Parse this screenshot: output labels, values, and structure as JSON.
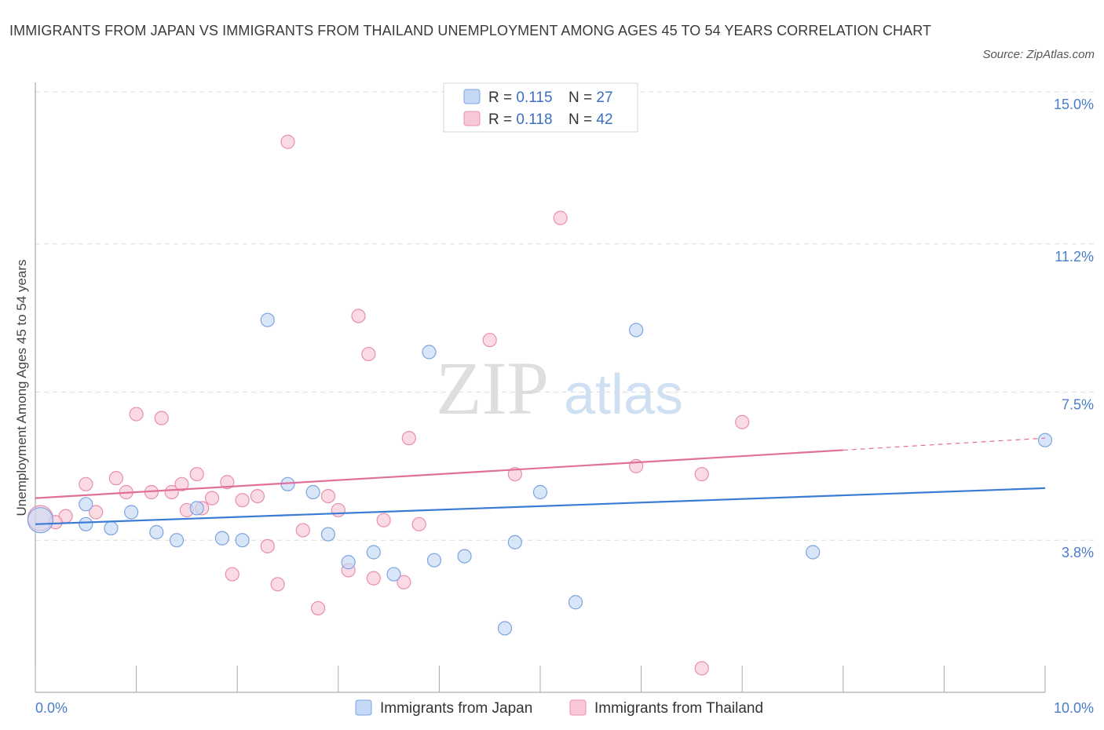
{
  "header": {
    "title": "IMMIGRANTS FROM JAPAN VS IMMIGRANTS FROM THAILAND UNEMPLOYMENT AMONG AGES 45 TO 54 YEARS CORRELATION CHART",
    "source": "Source: ZipAtlas.com"
  },
  "watermark": {
    "zip": "ZIP",
    "atlas": "atlas"
  },
  "colors": {
    "japan_fill": "#c5d8f5",
    "japan_stroke": "#7ba3e0",
    "japan_line": "#3a7bd5",
    "thailand_fill": "#f8c8d6",
    "thailand_stroke": "#e88fab",
    "thailand_line": "#e0709a",
    "tick_label": "#4a7cc9",
    "grid": "#dcdcdc"
  },
  "legend": {
    "rows": [
      {
        "r_label": "R = ",
        "r_value": "0.115",
        "n_label": "N = ",
        "n_value": "27"
      },
      {
        "r_label": "R = ",
        "r_value": "0.118",
        "n_label": "N = ",
        "n_value": "42"
      }
    ]
  },
  "chart_data": {
    "type": "scatter",
    "title": "IMMIGRANTS FROM JAPAN VS IMMIGRANTS FROM THAILAND UNEMPLOYMENT AMONG AGES 45 TO 54 YEARS CORRELATION CHART",
    "xlabel": "",
    "ylabel": "Unemployment Among Ages 45 to 54 years",
    "xlim": [
      0,
      10
    ],
    "ylim": [
      0,
      15
    ],
    "x_tick_labels": [
      "0.0%",
      "10.0%"
    ],
    "y_ticks": [
      3.8,
      7.5,
      11.2,
      15.0
    ],
    "y_tick_labels": [
      "3.8%",
      "7.5%",
      "11.2%",
      "15.0%"
    ],
    "grid": true,
    "legend_position": "top-center",
    "series": [
      {
        "name": "Immigrants from Japan",
        "trend": {
          "x": [
            0,
            10
          ],
          "y": [
            4.2,
            5.1
          ]
        },
        "points": [
          {
            "x": 0.05,
            "y": 4.3,
            "big": true
          },
          {
            "x": 0.5,
            "y": 4.7
          },
          {
            "x": 0.5,
            "y": 4.2
          },
          {
            "x": 0.75,
            "y": 4.1
          },
          {
            "x": 0.95,
            "y": 4.5
          },
          {
            "x": 1.2,
            "y": 4.0
          },
          {
            "x": 1.4,
            "y": 3.8
          },
          {
            "x": 1.6,
            "y": 4.6
          },
          {
            "x": 1.85,
            "y": 3.85
          },
          {
            "x": 2.05,
            "y": 3.8
          },
          {
            "x": 2.3,
            "y": 9.3
          },
          {
            "x": 2.5,
            "y": 5.2
          },
          {
            "x": 2.75,
            "y": 5.0
          },
          {
            "x": 2.9,
            "y": 3.95
          },
          {
            "x": 3.1,
            "y": 3.25
          },
          {
            "x": 3.35,
            "y": 3.5
          },
          {
            "x": 3.55,
            "y": 2.95
          },
          {
            "x": 3.9,
            "y": 8.5
          },
          {
            "x": 3.95,
            "y": 3.3
          },
          {
            "x": 4.25,
            "y": 3.4
          },
          {
            "x": 4.65,
            "y": 1.6
          },
          {
            "x": 4.75,
            "y": 3.75
          },
          {
            "x": 5.0,
            "y": 5.0
          },
          {
            "x": 5.35,
            "y": 2.25
          },
          {
            "x": 5.95,
            "y": 9.05
          },
          {
            "x": 7.7,
            "y": 3.5
          },
          {
            "x": 10.0,
            "y": 6.3
          }
        ]
      },
      {
        "name": "Immigrants from Thailand",
        "trend": {
          "x": [
            0,
            8
          ],
          "y": [
            4.85,
            6.05
          ]
        },
        "trend_dashed": {
          "x": [
            8,
            10
          ],
          "y": [
            6.05,
            6.35
          ]
        },
        "points": [
          {
            "x": 0.05,
            "y": 4.35,
            "big": true
          },
          {
            "x": 0.3,
            "y": 4.4
          },
          {
            "x": 0.5,
            "y": 5.2
          },
          {
            "x": 0.6,
            "y": 4.5
          },
          {
            "x": 0.8,
            "y": 5.35
          },
          {
            "x": 0.9,
            "y": 5.0
          },
          {
            "x": 1.0,
            "y": 6.95
          },
          {
            "x": 1.15,
            "y": 5.0
          },
          {
            "x": 1.25,
            "y": 6.85
          },
          {
            "x": 1.35,
            "y": 5.0
          },
          {
            "x": 1.45,
            "y": 5.2
          },
          {
            "x": 1.6,
            "y": 5.45
          },
          {
            "x": 1.65,
            "y": 4.6
          },
          {
            "x": 1.75,
            "y": 4.85
          },
          {
            "x": 1.9,
            "y": 5.25
          },
          {
            "x": 1.95,
            "y": 2.95
          },
          {
            "x": 2.05,
            "y": 4.8
          },
          {
            "x": 2.2,
            "y": 4.9
          },
          {
            "x": 2.3,
            "y": 3.65
          },
          {
            "x": 2.4,
            "y": 2.7
          },
          {
            "x": 2.5,
            "y": 13.75
          },
          {
            "x": 2.65,
            "y": 4.05
          },
          {
            "x": 2.8,
            "y": 2.1
          },
          {
            "x": 2.9,
            "y": 4.9
          },
          {
            "x": 3.0,
            "y": 4.55
          },
          {
            "x": 3.1,
            "y": 3.05
          },
          {
            "x": 3.2,
            "y": 9.4
          },
          {
            "x": 3.3,
            "y": 8.45
          },
          {
            "x": 3.35,
            "y": 2.85
          },
          {
            "x": 3.45,
            "y": 4.3
          },
          {
            "x": 3.65,
            "y": 2.75
          },
          {
            "x": 3.7,
            "y": 6.35
          },
          {
            "x": 3.8,
            "y": 4.2
          },
          {
            "x": 4.5,
            "y": 8.8
          },
          {
            "x": 4.75,
            "y": 5.45
          },
          {
            "x": 5.2,
            "y": 11.85
          },
          {
            "x": 5.95,
            "y": 5.65
          },
          {
            "x": 6.6,
            "y": 0.6
          },
          {
            "x": 6.6,
            "y": 5.45
          },
          {
            "x": 7.0,
            "y": 6.75
          },
          {
            "x": 0.2,
            "y": 4.25
          },
          {
            "x": 1.5,
            "y": 4.55
          }
        ]
      }
    ]
  }
}
